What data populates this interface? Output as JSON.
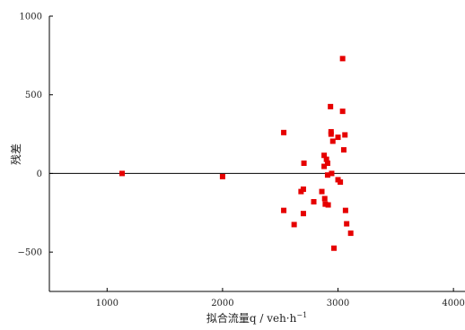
{
  "chart_data": {
    "type": "scatter",
    "title": "",
    "xlabel": "拟合流量q / veh·h",
    "xlabel_sup": "−1",
    "ylabel": "残差",
    "xlim": [
      500,
      4100
    ],
    "ylim": [
      -750,
      1000
    ],
    "x_ticks": [
      1000,
      2000,
      3000,
      4000
    ],
    "x_tick_labels": [
      "1000",
      "2000",
      "3000",
      "4000"
    ],
    "y_ticks": [
      -500,
      0,
      500,
      1000
    ],
    "y_tick_labels": [
      "−500",
      "0",
      "500",
      "1000"
    ],
    "grid": false,
    "legend": "none",
    "reference_line_y": 0,
    "marker": "square",
    "marker_color": "#e60000",
    "points": [
      {
        "x": 1130,
        "y": 0
      },
      {
        "x": 2000,
        "y": -20
      },
      {
        "x": 2530,
        "y": 260
      },
      {
        "x": 2530,
        "y": -235
      },
      {
        "x": 2620,
        "y": -325
      },
      {
        "x": 2680,
        "y": -115
      },
      {
        "x": 2700,
        "y": -100
      },
      {
        "x": 2700,
        "y": -255
      },
      {
        "x": 2705,
        "y": 65
      },
      {
        "x": 2790,
        "y": -180
      },
      {
        "x": 2860,
        "y": -115
      },
      {
        "x": 2880,
        "y": 115
      },
      {
        "x": 2880,
        "y": 45
      },
      {
        "x": 2885,
        "y": -160
      },
      {
        "x": 2890,
        "y": -195
      },
      {
        "x": 2900,
        "y": 90
      },
      {
        "x": 2910,
        "y": 65
      },
      {
        "x": 2910,
        "y": -10
      },
      {
        "x": 2915,
        "y": -200
      },
      {
        "x": 2935,
        "y": 425
      },
      {
        "x": 2940,
        "y": 265
      },
      {
        "x": 2940,
        "y": 250
      },
      {
        "x": 2945,
        "y": 0
      },
      {
        "x": 2955,
        "y": 205
      },
      {
        "x": 2965,
        "y": -475
      },
      {
        "x": 3000,
        "y": 230
      },
      {
        "x": 3000,
        "y": -40
      },
      {
        "x": 3020,
        "y": -55
      },
      {
        "x": 3040,
        "y": 730
      },
      {
        "x": 3040,
        "y": 395
      },
      {
        "x": 3050,
        "y": 150
      },
      {
        "x": 3060,
        "y": 245
      },
      {
        "x": 3065,
        "y": -235
      },
      {
        "x": 3075,
        "y": -320
      },
      {
        "x": 3110,
        "y": -380
      }
    ]
  }
}
